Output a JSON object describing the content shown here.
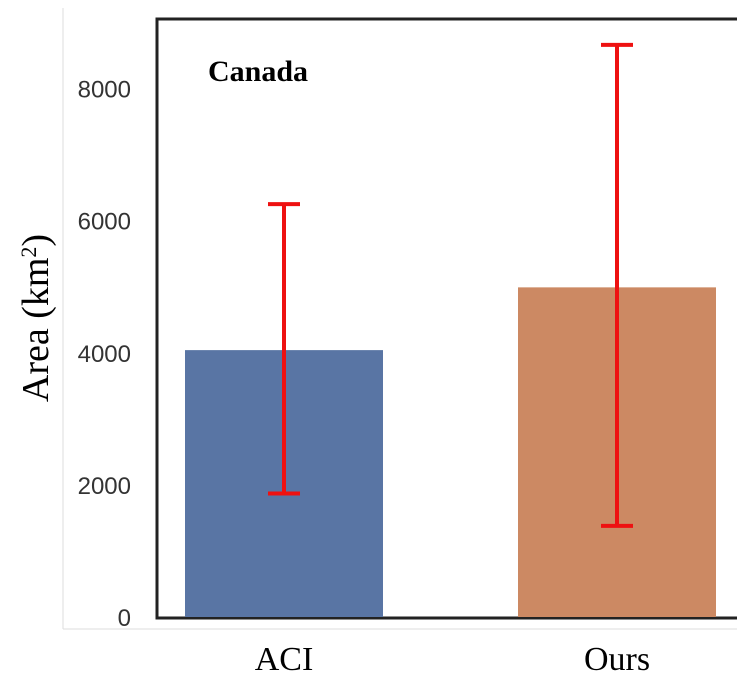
{
  "chart_data": {
    "type": "bar",
    "title": "Canada",
    "ylabel": "Area (km",
    "ylabel_sup": "2",
    "ylabel_close": ")",
    "categories": [
      "ACI",
      "Ours"
    ],
    "values": [
      4040,
      4990
    ],
    "error_low": [
      1870,
      1380
    ],
    "error_high": [
      6250,
      8660
    ],
    "ylim": [
      0,
      9000
    ],
    "yticks": [
      0,
      2000,
      4000,
      6000,
      8000
    ],
    "ytick_labels": [
      "0",
      "2000",
      "4000",
      "6000",
      "8000"
    ],
    "grid": false,
    "colors": {
      "bars": [
        "#5975a4",
        "#cc8963"
      ],
      "error_bars": "#ee1111",
      "axes": "#222222"
    }
  }
}
